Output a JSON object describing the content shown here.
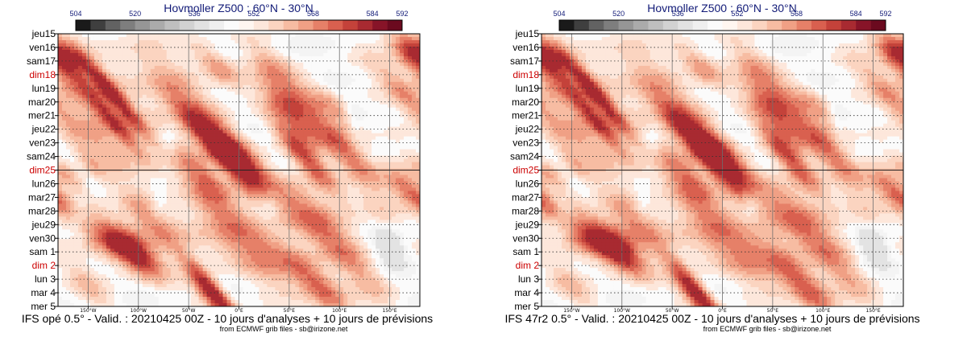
{
  "chart_data": [
    {
      "type": "heatmap",
      "title": "Hovmoller Z500 : 60°N - 30°N",
      "caption": "IFS opé 0.5° - Valid. : 20210425 00Z - 10 jours d'analyses + 10 jours de prévisions",
      "credit": "from ECMWF grib files - sb@irizone.net",
      "colorbar_ticks": [
        "504",
        "520",
        "536",
        "552",
        "568",
        "584",
        "592"
      ],
      "colorbar_colors": [
        "#1a1a1a",
        "#3f3f3f",
        "#626262",
        "#7e7e7e",
        "#969696",
        "#ababab",
        "#bfbfbf",
        "#d2d2d2",
        "#e2e2e2",
        "#efefef",
        "#fbfbfb",
        "#fff6f0",
        "#fde7db",
        "#fbd4c0",
        "#f7bca2",
        "#f0a085",
        "#e68068",
        "#d9604f",
        "#c4423a",
        "#a82a31",
        "#871428",
        "#6b0a1f"
      ],
      "y_labels": [
        "jeu15",
        "ven16",
        "sam17",
        "dim18",
        "lun19",
        "mar20",
        "mer21",
        "jeu22",
        "ven23",
        "sam24",
        "dim25",
        "lun26",
        "mar27",
        "mar28",
        "jeu29",
        "ven30",
        "sam 1",
        "dim 2",
        "lun 3",
        "mar 4",
        "mer 5"
      ],
      "sunday_labels": [
        "dim18",
        "dim25",
        "dim 2"
      ],
      "x_ticks": [
        "150°W",
        "100°W",
        "50°W",
        "0°E",
        "50°E",
        "100°E",
        "150°E"
      ],
      "x_tick_values": [
        -150,
        -100,
        -50,
        0,
        50,
        100,
        150
      ],
      "xlim": [
        -180,
        180
      ],
      "analysis_forecast_split": "dim25",
      "blobs": [
        [
          -180,
          16.5,
          14,
          1.2,
          3.3
        ],
        [
          -125,
          19.5,
          7,
          2.2,
          3.0
        ],
        [
          -130,
          21,
          8,
          2.2,
          2.6
        ],
        [
          -140,
          23,
          16,
          2.0,
          1.4
        ],
        [
          -105,
          20,
          30,
          3.0,
          1.0
        ],
        [
          -60,
          19,
          18,
          3.0,
          1.2
        ],
        [
          -20,
          17.5,
          12,
          1.2,
          2.0
        ],
        [
          -40,
          22,
          10,
          2.0,
          1.5
        ],
        [
          -12,
          23,
          14,
          2.0,
          1.8
        ],
        [
          45,
          18.5,
          14,
          2.0,
          1.8
        ],
        [
          52,
          21,
          12,
          1.8,
          2.2
        ],
        [
          65,
          24,
          10,
          2.0,
          2.8
        ],
        [
          5,
          24.5,
          12,
          1.6,
          2.0
        ],
        [
          105,
          23.5,
          12,
          2.2,
          2.6
        ],
        [
          95,
          20.5,
          10,
          1.4,
          1.6
        ],
        [
          165,
          19.5,
          12,
          2.0,
          1.8
        ],
        [
          -35,
          25.5,
          12,
          1.6,
          2.0
        ],
        [
          -170,
          25.5,
          10,
          1.2,
          1.5
        ],
        [
          -148,
          24.5,
          8,
          1.2,
          1.2
        ],
        [
          -30,
          27.5,
          14,
          2.0,
          1.5
        ],
        [
          -90,
          28.5,
          12,
          1.4,
          1.4
        ],
        [
          -120,
          30.3,
          20,
          1.4,
          3.2
        ],
        [
          -100,
          31.5,
          12,
          1.2,
          2.0
        ],
        [
          -150,
          33.5,
          12,
          1.4,
          1.2
        ],
        [
          -30,
          33.5,
          8,
          1.6,
          2.6
        ],
        [
          -25,
          34.5,
          10,
          1.2,
          2.0
        ],
        [
          70,
          28.5,
          20,
          2.2,
          2.5
        ],
        [
          80,
          33.5,
          14,
          2.0,
          2.6
        ],
        [
          -40,
          29.8,
          40,
          1.6,
          1.0
        ],
        [
          140,
          28,
          12,
          1.6,
          1.0
        ],
        [
          165,
          26.5,
          12,
          1.2,
          1.5
        ],
        [
          20,
          32,
          20,
          1.6,
          1.0
        ],
        [
          120,
          32.5,
          14,
          2.0,
          1.2
        ],
        [
          -5,
          25,
          10,
          2.0,
          1.5
        ],
        [
          180,
          27,
          10,
          1.5,
          1.2
        ],
        [
          -175,
          18.5,
          10,
          2.0,
          1.2
        ],
        [
          25,
          30.5,
          16,
          1.8,
          1.0
        ]
      ],
      "lows": [
        [
          -70,
          22.8,
          6,
          0.7
        ],
        [
          -80,
          27.5,
          6,
          0.6
        ],
        [
          30,
          27.5,
          8,
          0.8
        ],
        [
          150,
          30.5,
          12,
          1.2
        ],
        [
          -160,
          28.5,
          8,
          0.8
        ],
        [
          115,
          21.5,
          5,
          0.6
        ]
      ]
    },
    {
      "type": "heatmap",
      "title": "Hovmoller Z500 : 60°N - 30°N",
      "caption": "IFS 47r2 0.5° - Valid. : 20210425 00Z - 10 jours d'analyses + 10 jours de prévisions",
      "credit": "from ECMWF grib files - sb@irizone.net",
      "colorbar_ticks": [
        "504",
        "520",
        "536",
        "552",
        "568",
        "584",
        "592"
      ],
      "colorbar_colors": [
        "#1a1a1a",
        "#3f3f3f",
        "#626262",
        "#7e7e7e",
        "#969696",
        "#ababab",
        "#bfbfbf",
        "#d2d2d2",
        "#e2e2e2",
        "#efefef",
        "#fbfbfb",
        "#fff6f0",
        "#fde7db",
        "#fbd4c0",
        "#f7bca2",
        "#f0a085",
        "#e68068",
        "#d9604f",
        "#c4423a",
        "#a82a31",
        "#871428",
        "#6b0a1f"
      ],
      "y_labels": [
        "jeu15",
        "ven16",
        "sam17",
        "dim18",
        "lun19",
        "mar20",
        "mer21",
        "jeu22",
        "ven23",
        "sam24",
        "dim25",
        "lun26",
        "mar27",
        "mar28",
        "jeu29",
        "ven30",
        "sam 1",
        "dim 2",
        "lun 3",
        "mar 4",
        "mer 5"
      ],
      "sunday_labels": [
        "dim18",
        "dim25",
        "dim 2"
      ],
      "x_ticks": [
        "150°W",
        "100°W",
        "50°W",
        "0°E",
        "50°E",
        "100°E",
        "150°E"
      ],
      "x_tick_values": [
        -150,
        -100,
        -50,
        0,
        50,
        100,
        150
      ],
      "xlim": [
        -180,
        180
      ],
      "analysis_forecast_split": "dim25",
      "blobs": [
        [
          -180,
          16.5,
          14,
          1.2,
          3.3
        ],
        [
          -125,
          19.5,
          7,
          2.2,
          3.0
        ],
        [
          -130,
          21,
          8,
          2.2,
          2.6
        ],
        [
          -140,
          23,
          16,
          2.0,
          1.4
        ],
        [
          -105,
          20,
          30,
          3.0,
          1.0
        ],
        [
          -60,
          19,
          18,
          3.0,
          1.2
        ],
        [
          -20,
          17.5,
          12,
          1.2,
          2.0
        ],
        [
          -40,
          22,
          10,
          2.0,
          1.5
        ],
        [
          -12,
          23,
          14,
          2.0,
          1.8
        ],
        [
          45,
          18.5,
          14,
          2.0,
          1.8
        ],
        [
          52,
          21,
          12,
          1.8,
          2.2
        ],
        [
          65,
          24,
          10,
          2.0,
          2.8
        ],
        [
          5,
          24.5,
          12,
          1.6,
          2.0
        ],
        [
          105,
          23.5,
          12,
          2.2,
          2.6
        ],
        [
          95,
          20.5,
          10,
          1.4,
          1.6
        ],
        [
          165,
          19.5,
          12,
          2.0,
          1.8
        ],
        [
          -35,
          25.5,
          12,
          1.6,
          2.0
        ],
        [
          -170,
          25.5,
          10,
          1.2,
          1.5
        ],
        [
          -148,
          24.5,
          8,
          1.2,
          1.2
        ],
        [
          -30,
          27.5,
          14,
          2.0,
          1.5
        ],
        [
          -90,
          28.5,
          12,
          1.4,
          1.4
        ],
        [
          -122,
          30.1,
          22,
          1.4,
          3.4
        ],
        [
          -102,
          31.2,
          12,
          1.2,
          2.2
        ],
        [
          -150,
          33.5,
          12,
          1.4,
          1.2
        ],
        [
          -30,
          33.5,
          8,
          1.6,
          2.6
        ],
        [
          -25,
          34.5,
          10,
          1.2,
          2.0
        ],
        [
          70,
          28.5,
          22,
          2.2,
          2.4
        ],
        [
          82,
          33.5,
          14,
          2.2,
          2.8
        ],
        [
          -40,
          29.8,
          40,
          1.6,
          1.0
        ],
        [
          140,
          28,
          12,
          1.6,
          1.0
        ],
        [
          165,
          26.5,
          12,
          1.2,
          1.5
        ],
        [
          20,
          32,
          20,
          1.6,
          1.0
        ],
        [
          120,
          32.5,
          14,
          2.0,
          1.3
        ],
        [
          -5,
          25,
          10,
          2.0,
          1.5
        ],
        [
          180,
          27,
          10,
          1.5,
          1.2
        ],
        [
          -175,
          18.5,
          10,
          2.0,
          1.2
        ],
        [
          25,
          30.5,
          16,
          1.8,
          1.0
        ]
      ],
      "lows": [
        [
          -70,
          22.8,
          6,
          0.7
        ],
        [
          -80,
          27.5,
          6,
          0.6
        ],
        [
          30,
          27.5,
          8,
          0.8
        ],
        [
          150,
          30.5,
          12,
          1.2
        ],
        [
          -160,
          28.5,
          8,
          0.8
        ],
        [
          115,
          21.5,
          5,
          0.6
        ]
      ]
    }
  ]
}
